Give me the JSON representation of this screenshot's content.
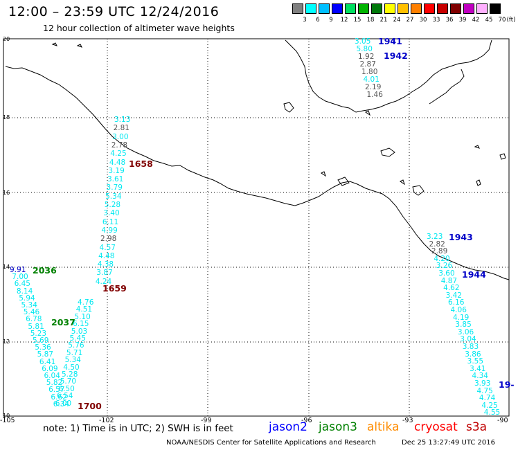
{
  "header": {
    "title": "12:00 – 23:59 UTC 12/24/2016",
    "subtitle": "12 hour collection of altimeter wave heights"
  },
  "colorbar": {
    "unit": "(ft)",
    "colors": [
      "#808080",
      "#00ffff",
      "#00bfff",
      "#0000ff",
      "#00e060",
      "#00b400",
      "#00780a",
      "#ffff00",
      "#ffc000",
      "#ff8000",
      "#ff0000",
      "#c80000",
      "#800000",
      "#c000c0",
      "#ffb0ff",
      "#000000"
    ],
    "labels": [
      "3",
      "6",
      "9",
      "12",
      "15",
      "18",
      "21",
      "24",
      "27",
      "30",
      "33",
      "36",
      "39",
      "42",
      "45",
      "70"
    ]
  },
  "axes": {
    "lat": [
      "20",
      "18",
      "16",
      "14",
      "12",
      "10"
    ],
    "lon": [
      "-105",
      "-102",
      "-99",
      "-96",
      "-93",
      "-90"
    ]
  },
  "tracks": [
    {
      "name": "track-1",
      "color": "cyan",
      "points": [
        {
          "v": "3.13",
          "c": "cyan"
        },
        {
          "v": "2.81",
          "c": "gray"
        },
        {
          "v": "3.00",
          "c": "cyan"
        },
        {
          "v": "2.78",
          "c": "gray"
        },
        {
          "v": "4.25",
          "c": "cyan"
        },
        {
          "v": "4.48",
          "c": "cyan"
        },
        {
          "v": "3.19",
          "c": "cyan"
        },
        {
          "v": "3.61",
          "c": "cyan"
        },
        {
          "v": "3.79",
          "c": "cyan"
        },
        {
          "v": "5.34",
          "c": "cyan"
        },
        {
          "v": "5.28",
          "c": "cyan"
        },
        {
          "v": "3.40",
          "c": "cyan"
        },
        {
          "v": "6.11",
          "c": "cyan"
        },
        {
          "v": "4.99",
          "c": "cyan"
        },
        {
          "v": "2.98",
          "c": "gray"
        },
        {
          "v": "4.57",
          "c": "cyan"
        },
        {
          "v": "4.48",
          "c": "cyan"
        },
        {
          "v": "4.38",
          "c": "cyan"
        },
        {
          "v": "3.87",
          "c": "cyan"
        },
        {
          "v": "4.24",
          "c": "cyan"
        }
      ]
    },
    {
      "name": "track-2",
      "color": "cyan",
      "points": [
        {
          "v": "4.76",
          "c": "cyan"
        },
        {
          "v": "4.51",
          "c": "cyan"
        },
        {
          "v": "5.10",
          "c": "cyan"
        },
        {
          "v": "6.15",
          "c": "cyan"
        },
        {
          "v": "5.03",
          "c": "cyan"
        },
        {
          "v": "5.45",
          "c": "cyan"
        },
        {
          "v": "5.76",
          "c": "cyan"
        },
        {
          "v": "5.71",
          "c": "cyan"
        },
        {
          "v": "5.34",
          "c": "cyan"
        },
        {
          "v": "4.50",
          "c": "cyan"
        },
        {
          "v": "5.28",
          "c": "cyan"
        },
        {
          "v": "5.70",
          "c": "cyan"
        },
        {
          "v": "6.50",
          "c": "cyan"
        },
        {
          "v": "6.54",
          "c": "cyan"
        },
        {
          "v": "6.00",
          "c": "cyan"
        }
      ]
    },
    {
      "name": "track-3",
      "color": "cyan",
      "points": [
        {
          "v": "9.91",
          "c": "blue"
        },
        {
          "v": "7.00",
          "c": "cyan"
        },
        {
          "v": "6.45",
          "c": "cyan"
        },
        {
          "v": "8.14",
          "c": "cyan"
        },
        {
          "v": "5.94",
          "c": "cyan"
        },
        {
          "v": "5.34",
          "c": "cyan"
        },
        {
          "v": "5.46",
          "c": "cyan"
        },
        {
          "v": "6.78",
          "c": "cyan"
        },
        {
          "v": "5.81",
          "c": "cyan"
        },
        {
          "v": "5.23",
          "c": "cyan"
        },
        {
          "v": "5.69",
          "c": "cyan"
        },
        {
          "v": "5.36",
          "c": "cyan"
        },
        {
          "v": "5.87",
          "c": "cyan"
        },
        {
          "v": "6.41",
          "c": "cyan"
        },
        {
          "v": "6.09",
          "c": "cyan"
        },
        {
          "v": "6.04",
          "c": "cyan"
        },
        {
          "v": "5.82",
          "c": "cyan"
        },
        {
          "v": "6.57",
          "c": "cyan"
        },
        {
          "v": "6.62",
          "c": "cyan"
        },
        {
          "v": "6.34",
          "c": "cyan"
        }
      ]
    },
    {
      "name": "track-4",
      "color": "cyan",
      "points": [
        {
          "v": "3.05",
          "c": "cyan"
        },
        {
          "v": "5.80",
          "c": "cyan"
        },
        {
          "v": "1.92",
          "c": "gray"
        },
        {
          "v": "2.87",
          "c": "gray"
        },
        {
          "v": "1.80",
          "c": "gray"
        },
        {
          "v": "4.01",
          "c": "cyan"
        },
        {
          "v": "2.19",
          "c": "gray"
        },
        {
          "v": "1.46",
          "c": "gray"
        }
      ]
    },
    {
      "name": "track-5",
      "color": "cyan",
      "points": [
        {
          "v": "3.23",
          "c": "cyan"
        },
        {
          "v": "2.82",
          "c": "gray"
        },
        {
          "v": "2.89",
          "c": "gray"
        },
        {
          "v": "4.20",
          "c": "cyan"
        },
        {
          "v": "3.26",
          "c": "cyan"
        },
        {
          "v": "3.60",
          "c": "cyan"
        },
        {
          "v": "4.87",
          "c": "cyan"
        },
        {
          "v": "4.62",
          "c": "cyan"
        },
        {
          "v": "3.42",
          "c": "cyan"
        },
        {
          "v": "6.16",
          "c": "cyan"
        },
        {
          "v": "4.06",
          "c": "cyan"
        },
        {
          "v": "4.19",
          "c": "cyan"
        },
        {
          "v": "3.85",
          "c": "cyan"
        },
        {
          "v": "3.06",
          "c": "cyan"
        },
        {
          "v": "3.04",
          "c": "cyan"
        },
        {
          "v": "3.83",
          "c": "cyan"
        },
        {
          "v": "3.86",
          "c": "cyan"
        },
        {
          "v": "3.55",
          "c": "cyan"
        },
        {
          "v": "3.41",
          "c": "cyan"
        },
        {
          "v": "4.34",
          "c": "cyan"
        },
        {
          "v": "3.93",
          "c": "cyan"
        },
        {
          "v": "4.75",
          "c": "cyan"
        },
        {
          "v": "4.74",
          "c": "cyan"
        },
        {
          "v": "4.25",
          "c": "cyan"
        },
        {
          "v": "4.55",
          "c": "cyan"
        }
      ]
    }
  ],
  "times": [
    {
      "t": "1658",
      "c": "darkred"
    },
    {
      "t": "1659",
      "c": "darkred"
    },
    {
      "t": "1700",
      "c": "darkred"
    },
    {
      "t": "2036",
      "c": "green"
    },
    {
      "t": "2037",
      "c": "green"
    },
    {
      "t": "1941",
      "c": "blue"
    },
    {
      "t": "1942",
      "c": "blue"
    },
    {
      "t": "1943",
      "c": "blue"
    },
    {
      "t": "1944",
      "c": "blue"
    },
    {
      "t": "19-",
      "c": "blue"
    }
  ],
  "note": "note:  1) Time is in UTC;  2) SWH is in feet",
  "legend": [
    {
      "label": "jason2",
      "color": "#0000ff"
    },
    {
      "label": "jason3",
      "color": "#008000"
    },
    {
      "label": "altika",
      "color": "#ff8c00"
    },
    {
      "label": "cryosat",
      "color": "#ff0000"
    },
    {
      "label": "s3a",
      "color": "#c00000"
    }
  ],
  "footer": {
    "credit": "NOAA/NESDIS Center for Satellite Applications and Research",
    "timestamp": "Dec 25 13:27:49 UTC 2016"
  }
}
